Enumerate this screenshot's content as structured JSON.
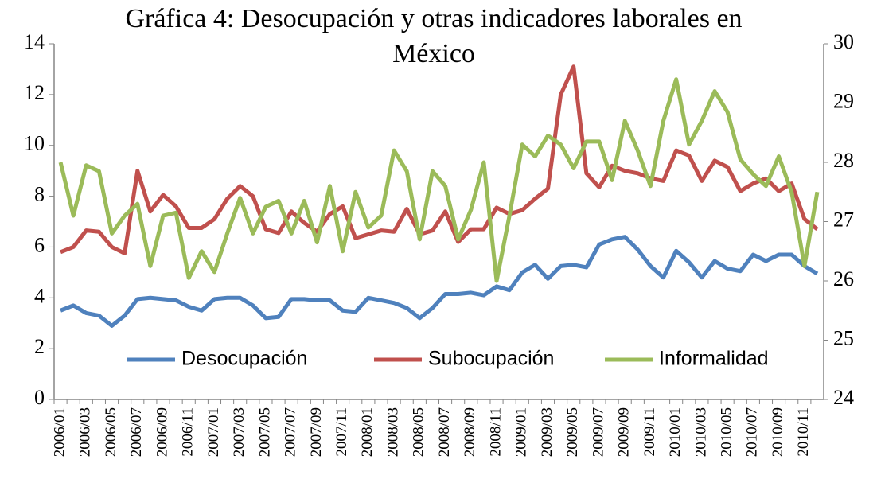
{
  "chart_data": {
    "type": "line",
    "title": [
      "Gráfica 4: Desocupación y otras indicadores laborales en",
      "México"
    ],
    "categories": [
      "2006/01",
      null,
      "2006/03",
      null,
      "2006/05",
      null,
      "2006/07",
      null,
      "2006/09",
      null,
      "2006/11",
      null,
      "2007/01",
      null,
      "2007/03",
      null,
      "2007/05",
      null,
      "2007/07",
      null,
      "2007/09",
      null,
      "2007/11",
      null,
      "2008/01",
      null,
      "2008/03",
      null,
      "2008/05",
      null,
      "2008/07",
      null,
      "2008/09",
      null,
      "2008/11",
      null,
      "2009/01",
      null,
      "2009/03",
      null,
      "2009/05",
      null,
      "2009/07",
      null,
      "2009/09",
      null,
      "2009/11",
      null,
      "2010/01",
      null,
      "2010/03",
      null,
      "2010/05",
      null,
      "2010/07",
      null,
      "2010/09",
      null,
      "2010/11",
      null
    ],
    "series": [
      {
        "name": "Desocupación",
        "color": "#4f81bd",
        "values": [
          3.5,
          3.7,
          3.4,
          3.3,
          2.9,
          3.3,
          3.95,
          4.0,
          3.95,
          3.9,
          3.65,
          3.5,
          3.95,
          4.0,
          4.0,
          3.7,
          3.2,
          3.25,
          3.95,
          3.95,
          3.9,
          3.9,
          3.5,
          3.45,
          4.0,
          3.9,
          3.8,
          3.6,
          3.2,
          3.6,
          4.15,
          4.15,
          4.2,
          4.1,
          4.45,
          4.3,
          5.0,
          5.3,
          4.75,
          5.25,
          5.3,
          5.2,
          6.1,
          6.3,
          6.4,
          5.9,
          5.25,
          4.8,
          5.85,
          5.4,
          4.8,
          5.45,
          5.15,
          5.05,
          5.7,
          5.45,
          5.7,
          5.7,
          5.25,
          4.95
        ]
      },
      {
        "name": "Subocupación",
        "color": "#c0504d",
        "values": [
          5.8,
          6.0,
          6.65,
          6.6,
          6.0,
          5.75,
          9.0,
          7.4,
          8.05,
          7.6,
          6.75,
          6.75,
          7.1,
          7.9,
          8.4,
          8.0,
          6.7,
          6.55,
          7.4,
          6.95,
          6.6,
          7.3,
          7.6,
          6.35,
          6.5,
          6.65,
          6.6,
          7.5,
          6.5,
          6.65,
          7.4,
          6.2,
          6.7,
          6.7,
          7.55,
          7.3,
          7.45,
          7.9,
          8.3,
          12.0,
          13.1,
          8.9,
          8.35,
          9.2,
          9.0,
          8.9,
          8.7,
          8.6,
          9.8,
          9.6,
          8.6,
          9.4,
          9.15,
          8.2,
          8.5,
          8.7,
          8.2,
          8.5,
          7.1,
          6.7
        ]
      },
      {
        "name": "Informalidad",
        "color": "#9bbb59",
        "axis": "y2",
        "values": [
          28.0,
          27.1,
          27.95,
          27.85,
          26.8,
          27.1,
          27.3,
          26.25,
          27.1,
          27.15,
          26.05,
          26.5,
          26.15,
          26.8,
          27.4,
          26.8,
          27.25,
          27.35,
          26.8,
          27.35,
          26.65,
          27.6,
          26.5,
          27.5,
          26.9,
          27.1,
          28.2,
          27.85,
          26.7,
          27.85,
          27.6,
          26.7,
          27.2,
          28.0,
          26.0,
          27.1,
          28.3,
          28.1,
          28.45,
          28.3,
          27.9,
          28.35,
          28.35,
          27.7,
          28.7,
          28.2,
          27.6,
          28.7,
          29.4,
          28.3,
          28.7,
          29.2,
          28.85,
          28.05,
          27.8,
          27.6,
          28.1,
          27.5,
          26.25,
          27.5
        ]
      }
    ],
    "ylim": [
      0,
      14
    ],
    "yticks": [
      0,
      2,
      4,
      6,
      8,
      10,
      12,
      14
    ],
    "y2lim": [
      24,
      30
    ],
    "y2ticks": [
      24,
      25,
      26,
      27,
      28,
      29,
      30
    ],
    "legend": "bottom"
  }
}
